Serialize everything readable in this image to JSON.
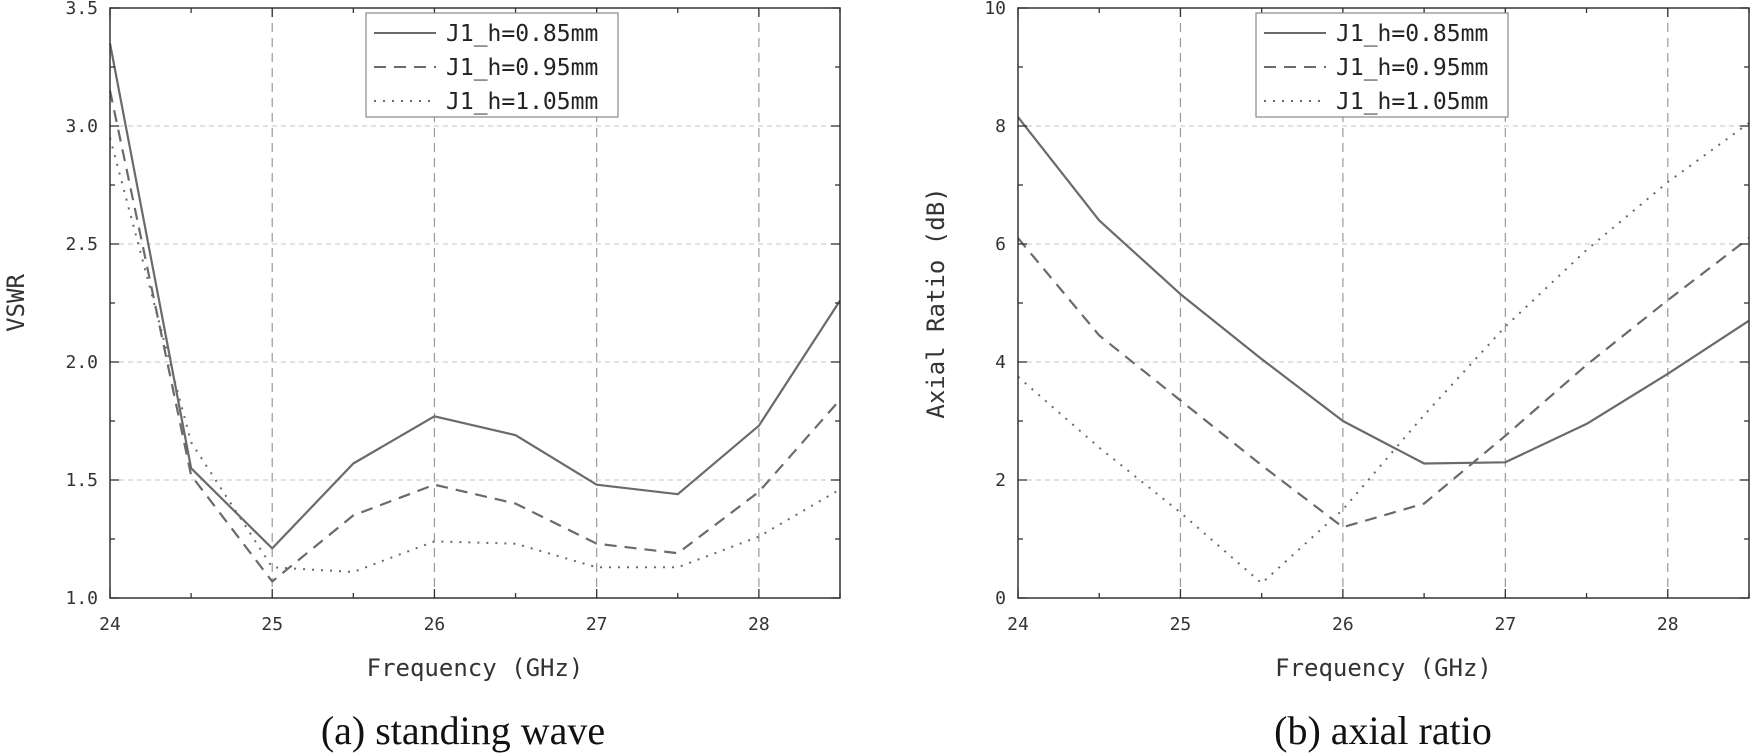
{
  "chart_data": [
    {
      "type": "line",
      "caption": "(a) standing wave",
      "xlabel": "Frequency (GHz)",
      "ylabel": "VSWR",
      "xlim": [
        24,
        28.5
      ],
      "ylim": [
        1.0,
        3.5
      ],
      "xticks": [
        "24",
        "25",
        "26",
        "27",
        "28"
      ],
      "yticks": [
        "1.0",
        "1.5",
        "2.0",
        "2.5",
        "3.0",
        "3.5"
      ],
      "grid": true,
      "legend_position": "top-center",
      "x": [
        24,
        24.5,
        25,
        25.5,
        26,
        26.5,
        27,
        27.5,
        28,
        28.5
      ],
      "series": [
        {
          "name": "J1_h=0.85mm",
          "style": "solid",
          "values": [
            3.35,
            1.55,
            1.21,
            1.57,
            1.77,
            1.69,
            1.48,
            1.44,
            1.73,
            2.26
          ]
        },
        {
          "name": "J1_h=0.95mm",
          "style": "dashed",
          "values": [
            3.15,
            1.52,
            1.07,
            1.35,
            1.48,
            1.4,
            1.23,
            1.19,
            1.45,
            1.84
          ]
        },
        {
          "name": "J1_h=1.05mm",
          "style": "dotted",
          "values": [
            2.95,
            1.66,
            1.13,
            1.11,
            1.24,
            1.23,
            1.13,
            1.13,
            1.26,
            1.46
          ]
        }
      ]
    },
    {
      "type": "line",
      "caption": "(b) axial ratio",
      "xlabel": "Frequency (GHz)",
      "ylabel": "Axial Ratio (dB)",
      "xlim": [
        24,
        28.5
      ],
      "ylim": [
        0,
        10
      ],
      "xticks": [
        "24",
        "25",
        "26",
        "27",
        "28"
      ],
      "yticks": [
        "0",
        "2",
        "4",
        "6",
        "8",
        "10"
      ],
      "grid": true,
      "legend_position": "top-center",
      "x": [
        24,
        24.5,
        25,
        25.5,
        26,
        26.5,
        27,
        27.5,
        28,
        28.5
      ],
      "series": [
        {
          "name": "J1_h=0.85mm",
          "style": "solid",
          "values": [
            8.15,
            6.4,
            5.15,
            4.05,
            3.0,
            2.28,
            2.3,
            2.95,
            3.8,
            4.7
          ]
        },
        {
          "name": "J1_h=0.95mm",
          "style": "dashed",
          "values": [
            6.1,
            4.45,
            3.35,
            2.25,
            1.2,
            1.6,
            2.75,
            3.95,
            5.05,
            6.1
          ]
        },
        {
          "name": "J1_h=1.05mm",
          "style": "dotted",
          "values": [
            3.75,
            2.55,
            1.45,
            0.25,
            1.5,
            3.1,
            4.6,
            5.9,
            7.05,
            8.05
          ]
        }
      ]
    }
  ]
}
